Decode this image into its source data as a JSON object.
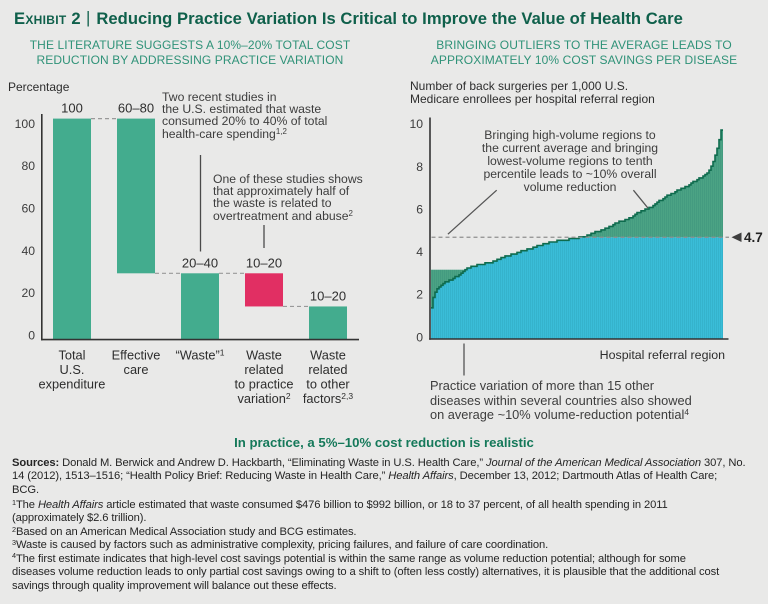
{
  "header": {
    "exhibit_label": "Exhibit 2",
    "separator": "|",
    "title": "Reducing Practice Variation Is Critical to Improve the Value of Health Care"
  },
  "colors": {
    "background": "#e9e9e8",
    "title_green": "#0f604b",
    "subtitle_green": "#2f9278",
    "bar_green": "#43ac8e",
    "bar_pink": "#e12f63",
    "area_cyan": "#3abdd8",
    "area_green": "#4ba384",
    "curve_outline": "#0e6b4d",
    "axis": "#333333",
    "dash_gray": "#999999",
    "text_dark": "#2d2d2d",
    "annotation_text": "#3d3d3d",
    "tagline_green": "#15795a"
  },
  "left_chart": {
    "subtitle_lines": [
      "THE LITERATURE SUGGESTS A 10%–20% TOTAL COST",
      "REDUCTION BY ADDRESSING PRACTICE VARIATION"
    ],
    "axis_caption": "Percentage",
    "annotation_1_lines": [
      "Two recent studies in",
      "the U.S. estimated that waste",
      "consumed 20% to 40% of total",
      [
        {
          "t": "health-care spending"
        },
        {
          "t": "1,2",
          "sup": true
        }
      ]
    ],
    "annotation_2_lines": [
      "One of these studies shows",
      "that approximately half of",
      "the waste is related to",
      [
        {
          "t": "overtreatment and abuse"
        },
        {
          "t": "2",
          "sup": true
        }
      ]
    ]
  },
  "right_chart": {
    "subtitle_lines": [
      "BRINGING OUTLIERS TO THE AVERAGE LEADS TO",
      "APPROXIMATELY 10% COST SAVINGS PER DISEASE"
    ],
    "axis_caption_lines": [
      "Number of back surgeries per 1,000 U.S.",
      "Medicare enrollees per hospital referral region"
    ],
    "annotation_lines": [
      "Bringing high-volume regions to",
      "the current average and bringing",
      "lowest-volume regions to tenth",
      "percentile leads to ~10% overall",
      "volume reduction"
    ],
    "x_axis_label": "Hospital referral region",
    "bottom_annotation_lines": [
      "Practice variation of more than 15 other",
      "diseases within several countries also showed",
      [
        {
          "t": "on average ~10% volume-reduction potential"
        },
        {
          "t": "4",
          "sup": true
        }
      ]
    ]
  },
  "chart_data": [
    {
      "type": "bar",
      "title": "THE LITERATURE SUGGESTS A 10%–20% TOTAL COST REDUCTION BY ADDRESSING PRACTICE VARIATION",
      "ylabel": "Percentage",
      "ylim": [
        0,
        100
      ],
      "yticks": [
        0,
        20,
        40,
        60,
        80,
        100
      ],
      "categories": [
        [
          "Total",
          "U.S.",
          "expenditure"
        ],
        [
          "Effective",
          "care"
        ],
        [
          [
            {
              "t": "“Waste”"
            },
            {
              "t": "1",
              "sup": true
            }
          ]
        ],
        [
          "Waste",
          "related",
          "to practice",
          [
            {
              "t": "variation"
            },
            {
              "t": "2",
              "sup": true
            }
          ]
        ],
        [
          "Waste",
          "related",
          "to other",
          [
            {
              "t": "factors"
            },
            {
              "t": "2,3",
              "sup": true
            }
          ]
        ]
      ],
      "bars": [
        {
          "label": "100",
          "start": 0,
          "end": 100,
          "color": "green"
        },
        {
          "label": "60–80",
          "start": 30,
          "end": 100,
          "color": "green"
        },
        {
          "label": "20–40",
          "start": 0,
          "end": 30,
          "color": "green"
        },
        {
          "label": "10–20",
          "start": 15,
          "end": 30,
          "color": "pink"
        },
        {
          "label": "10–20",
          "start": 0,
          "end": 15,
          "color": "green"
        }
      ],
      "connector_values": [
        100,
        30,
        30,
        15
      ]
    },
    {
      "type": "area",
      "title": "BRINGING OUTLIERS TO THE AVERAGE LEADS TO APPROXIMATELY 10% COST SAVINGS PER DISEASE",
      "ylabel": "Number of back surgeries per 1,000 U.S. Medicare enrollees per hospital referral region",
      "xlabel": "Hospital referral region",
      "ylim": [
        0,
        10
      ],
      "yticks": [
        0,
        2,
        4,
        6,
        8,
        10
      ],
      "average": 4.7,
      "average_label": "4.7",
      "tenth_percentile": 3.2,
      "n_bars": 146,
      "profile": [
        [
          0,
          1.4
        ],
        [
          0.004,
          1.75
        ],
        [
          0.01,
          2.1
        ],
        [
          0.02,
          2.35
        ],
        [
          0.04,
          2.55
        ],
        [
          0.06,
          2.7
        ],
        [
          0.09,
          2.9
        ],
        [
          0.115,
          3.15
        ],
        [
          0.13,
          3.3
        ],
        [
          0.16,
          3.42
        ],
        [
          0.2,
          3.52
        ],
        [
          0.24,
          3.75
        ],
        [
          0.28,
          3.9
        ],
        [
          0.32,
          4.1
        ],
        [
          0.37,
          4.3
        ],
        [
          0.42,
          4.5
        ],
        [
          0.47,
          4.6
        ],
        [
          0.52,
          4.7
        ],
        [
          0.56,
          4.9
        ],
        [
          0.6,
          5.1
        ],
        [
          0.64,
          5.37
        ],
        [
          0.68,
          5.55
        ],
        [
          0.72,
          5.9
        ],
        [
          0.76,
          6.1
        ],
        [
          0.8,
          6.5
        ],
        [
          0.84,
          6.8
        ],
        [
          0.88,
          7.05
        ],
        [
          0.91,
          7.3
        ],
        [
          0.935,
          7.5
        ],
        [
          0.955,
          7.7
        ],
        [
          0.97,
          8.1
        ],
        [
          0.982,
          8.6
        ],
        [
          0.99,
          9.0
        ],
        [
          0.996,
          9.4
        ],
        [
          1.0,
          9.65
        ]
      ]
    }
  ],
  "tagline": "In practice, a 5%–10% cost reduction is realistic",
  "notes": {
    "sources_lines": [
      [
        {
          "t": "Sources:",
          "b": true
        },
        {
          "t": " Donald M. Berwick and Andrew D. Hackbarth, “Eliminating Waste in U.S. Health Care,” "
        },
        {
          "t": "Journal of the American Medical Association",
          "i": true
        },
        {
          "t": " 307, No."
        }
      ],
      [
        {
          "t": "14 (2012), 1513–1516; “Health Policy Brief: Reducing Waste in Health Care,” "
        },
        {
          "t": "Health Affairs",
          "i": true
        },
        {
          "t": ", December 13, 2012; Dartmouth Atlas of Health Care;"
        }
      ],
      [
        {
          "t": "BCG."
        }
      ]
    ],
    "footnote_lines": [
      [
        {
          "t": "1",
          "sup": true
        },
        {
          "t": "The "
        },
        {
          "t": "Health Affairs",
          "i": true
        },
        {
          "t": " article estimated that waste consumed $476 billion to $992 billion, or 18 to 37 percent, of all health spending in 2011"
        }
      ],
      [
        {
          "t": "(approximately $2.6 trillion)."
        }
      ],
      [
        {
          "t": "2",
          "sup": true
        },
        {
          "t": "Based on an American Medical Association study and BCG estimates."
        }
      ],
      [
        {
          "t": "3",
          "sup": true
        },
        {
          "t": "Waste is caused by factors such as administrative complexity, pricing failures, and failure of care coordination."
        }
      ],
      [
        {
          "t": "4",
          "sup": true
        },
        {
          "t": "The first estimate indicates that high-level cost savings potential is within the same range as volume reduction potential; although for some"
        }
      ],
      [
        {
          "t": "diseases volume reduction leads to only partial cost savings owing to a shift to (often less costly) alternatives, it is plausible that the additional cost"
        }
      ],
      [
        {
          "t": "savings through quality improvement will balance out these effects."
        }
      ]
    ]
  }
}
